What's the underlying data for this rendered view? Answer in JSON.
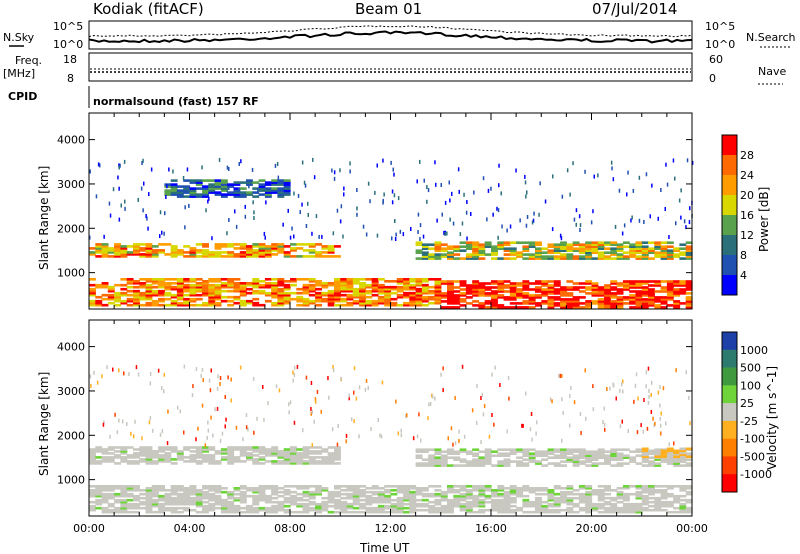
{
  "header": {
    "station": "Kodiak (fitACF)",
    "beam": "Beam 01",
    "date": "07/Jul/2014"
  },
  "noise_panel": {
    "left_label": "N.Sky",
    "left_ticks": [
      "10^5",
      "10^0"
    ],
    "right_ticks": [
      "10^5",
      "10^0"
    ],
    "right_label": "N.Search"
  },
  "freq_panel": {
    "left_label_1": "Freq.",
    "left_label_2": "[MHz]",
    "left_ticks": [
      "18",
      "8"
    ],
    "right_ticks": [
      "60",
      "0"
    ],
    "right_label": "Nave"
  },
  "cpid_panel": {
    "label": "CPID",
    "mode": "normalsound (fast) 157 RF"
  },
  "chart_data": [
    {
      "type": "heatmap",
      "quantity": "Power",
      "ylabel": "Slant Range [km]",
      "ylim": [
        180,
        4600
      ],
      "yticks": [
        "1000",
        "2000",
        "3000",
        "4000"
      ],
      "colorbar_label": "Power [dB]",
      "colorbar_ticks": [
        "28",
        "24",
        "20",
        "16",
        "12",
        "8",
        "4"
      ],
      "colorbar_colors": [
        "#ff0000",
        "#ff6a00",
        "#ff9c00",
        "#d8d800",
        "#5aa14e",
        "#2a6f7a",
        "#2050b0",
        "#0000ff"
      ],
      "echo_bands": [
        {
          "range_km": [
            1350,
            1650
          ],
          "time_ut": [
            0,
            10
          ],
          "power_db": 20
        },
        {
          "range_km": [
            1300,
            1700
          ],
          "time_ut": [
            13,
            24
          ],
          "power_db": 16
        },
        {
          "range_km": [
            250,
            850
          ],
          "time_ut": [
            0,
            14
          ],
          "power_db": 22
        },
        {
          "range_km": [
            200,
            800
          ],
          "time_ut": [
            14,
            24
          ],
          "power_db": 27
        },
        {
          "range_km": [
            2700,
            3100
          ],
          "time_ut": [
            3,
            8
          ],
          "power_db": 6
        }
      ]
    },
    {
      "type": "heatmap",
      "quantity": "Velocity",
      "ylabel": "Slant Range [km]",
      "ylim": [
        180,
        4600
      ],
      "yticks": [
        "1000",
        "2000",
        "3000",
        "4000"
      ],
      "xlabel": "Time UT",
      "xticks": [
        "00:00",
        "04:00",
        "08:00",
        "12:00",
        "16:00",
        "20:00",
        "00:00"
      ],
      "colorbar_label": "Velocity [m s^-1]",
      "colorbar_ticks": [
        "1000",
        "500",
        "100",
        "25",
        "-25",
        "-100",
        "-500",
        "-1000"
      ],
      "colorbar_colors": [
        "#1c3fa8",
        "#2d7a6e",
        "#3f9a3f",
        "#6ed43a",
        "#c8c8c0",
        "#ffb020",
        "#ff8000",
        "#ff4000",
        "#ff0000"
      ],
      "echo_bands": [
        {
          "range_km": [
            1350,
            1750
          ],
          "time_ut": [
            0,
            10
          ],
          "velocity_ms": 0
        },
        {
          "range_km": [
            1300,
            1700
          ],
          "time_ut": [
            13,
            24
          ],
          "velocity_ms": 0
        },
        {
          "range_km": [
            250,
            850
          ],
          "time_ut": [
            0,
            24
          ],
          "velocity_ms": 0
        },
        {
          "range_km": [
            1500,
            1700
          ],
          "time_ut": [
            22,
            24
          ],
          "velocity_ms": -100
        }
      ]
    }
  ]
}
